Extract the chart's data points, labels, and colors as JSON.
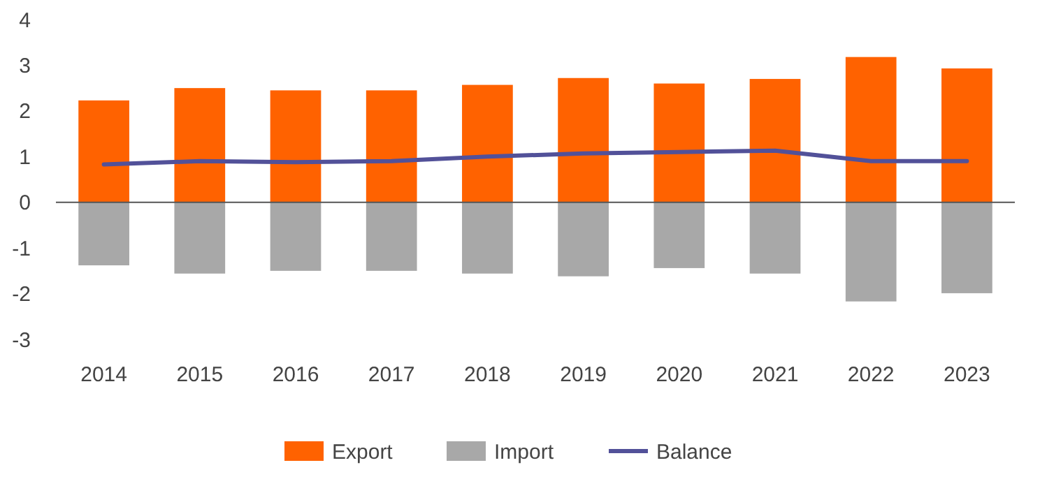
{
  "chart_data": {
    "type": "bar",
    "categories": [
      "2014",
      "2015",
      "2016",
      "2017",
      "2018",
      "2019",
      "2020",
      "2021",
      "2022",
      "2023"
    ],
    "series": [
      {
        "name": "Export",
        "color": "#ff6200",
        "values": [
          2.23,
          2.5,
          2.45,
          2.45,
          2.57,
          2.72,
          2.6,
          2.7,
          3.18,
          2.93
        ]
      },
      {
        "name": "Import",
        "color": "#a8a8a8",
        "values": [
          -1.38,
          -1.56,
          -1.5,
          -1.5,
          -1.56,
          -1.62,
          -1.44,
          -1.56,
          -2.17,
          -1.99
        ]
      },
      {
        "name": "Balance",
        "type": "line",
        "color": "#525199",
        "values": [
          0.83,
          0.9,
          0.88,
          0.9,
          1.0,
          1.07,
          1.1,
          1.13,
          0.9,
          0.9
        ]
      }
    ],
    "ylim": [
      -3,
      4
    ],
    "yticks": [
      -3,
      -2,
      -1,
      0,
      1,
      2,
      3,
      4
    ],
    "legend": "bottom",
    "stacked": true
  }
}
